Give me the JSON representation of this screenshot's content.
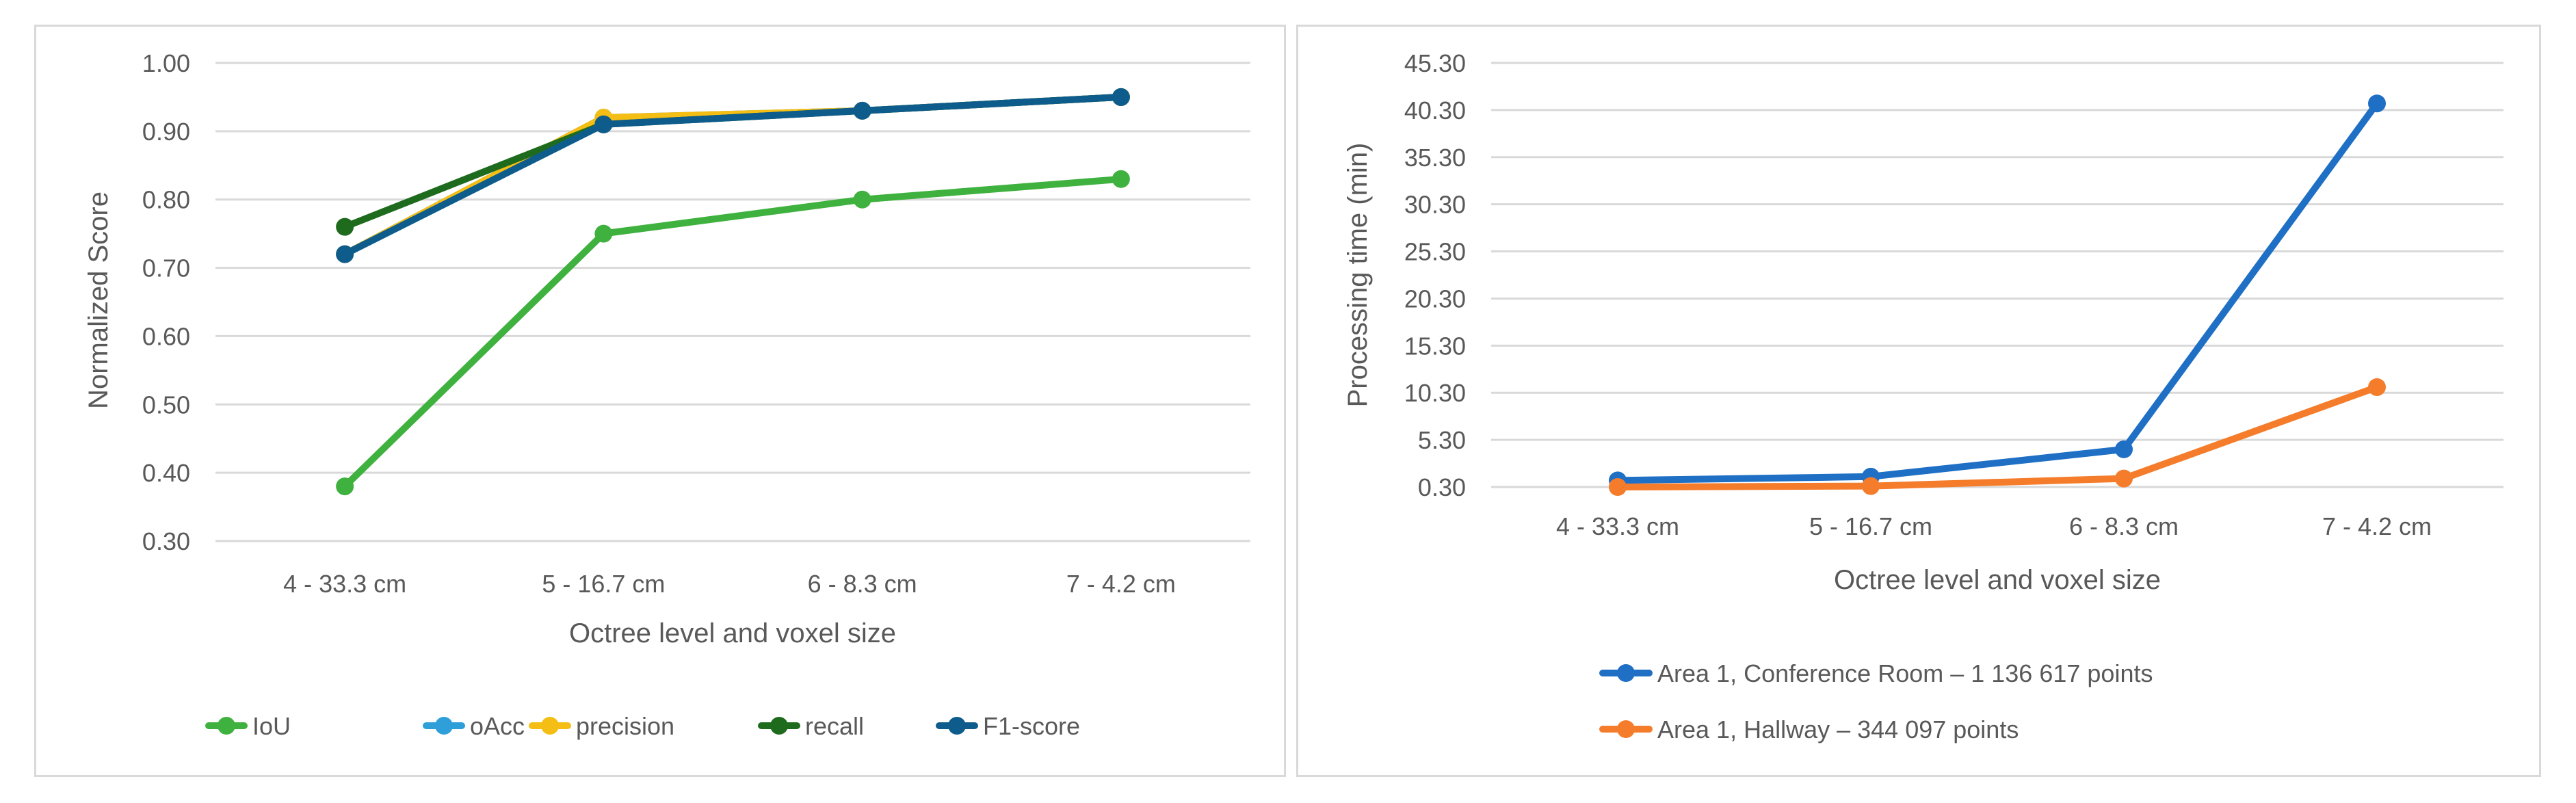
{
  "charts": [
    {
      "type": "line",
      "xlabel": "Octree level and voxel size",
      "ylabel": "Normalized Score",
      "categories": [
        "4 - 33.3 cm",
        "5 - 16.7 cm",
        "6 - 8.3 cm",
        "7 - 4.2 cm"
      ],
      "yticks": [
        "0.30",
        "0.40",
        "0.50",
        "0.60",
        "0.70",
        "0.80",
        "0.90",
        "1.00"
      ],
      "ylim": [
        0.3,
        1.0
      ],
      "grid": true,
      "legend_position": "bottom",
      "series": [
        {
          "name": "IoU",
          "color": "#3fb13f",
          "values": [
            0.38,
            0.75,
            0.8,
            0.83
          ]
        },
        {
          "name": "oAcc",
          "color": "#2e9fd9",
          "values": [
            0.72,
            0.92,
            0.93,
            0.95
          ]
        },
        {
          "name": "precision",
          "color": "#f5be14",
          "values": [
            0.72,
            0.92,
            0.93,
            0.95
          ]
        },
        {
          "name": "recall",
          "color": "#1e6b1e",
          "values": [
            0.76,
            0.91,
            0.93,
            0.95
          ]
        },
        {
          "name": "F1-score",
          "color": "#0e5c8c",
          "values": [
            0.72,
            0.91,
            0.93,
            0.95
          ]
        }
      ]
    },
    {
      "type": "line",
      "xlabel": "Octree level and voxel size",
      "ylabel": "Processing time (min)",
      "categories": [
        "4 - 33.3 cm",
        "5 - 16.7 cm",
        "6 - 8.3 cm",
        "7 - 4.2 cm"
      ],
      "yticks": [
        "0.30",
        "5.30",
        "10.30",
        "15.30",
        "20.30",
        "25.30",
        "30.30",
        "35.30",
        "40.30",
        "45.30"
      ],
      "ylim": [
        0.3,
        45.3
      ],
      "grid": true,
      "legend_position": "bottom",
      "series": [
        {
          "name": "Area 1, Conference Room – 1 136 617 points",
          "color": "#1f6fc5",
          "values": [
            1.0,
            1.4,
            4.3,
            41.0
          ]
        },
        {
          "name": "Area 1, Hallway – 344 097 points",
          "color": "#f47c2a",
          "values": [
            0.3,
            0.4,
            1.2,
            10.9
          ]
        }
      ]
    }
  ]
}
